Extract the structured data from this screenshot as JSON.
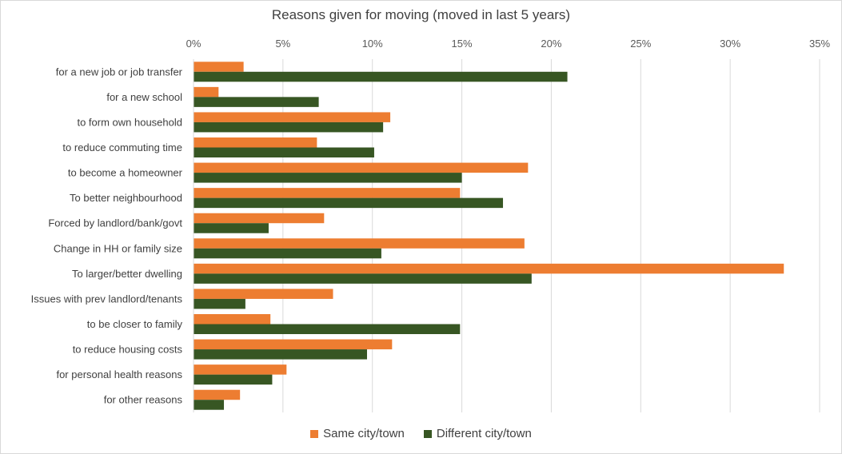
{
  "chart_data": {
    "type": "bar",
    "orientation": "horizontal",
    "title": "Reasons given for moving (moved in last 5 years)",
    "categories": [
      "for a new job or job transfer",
      "for a new school",
      "to form own household",
      "to reduce commuting time",
      "to become a homeowner",
      "To better neighbourhood",
      "Forced by landlord/bank/govt",
      "Change in HH or family size",
      "To larger/better dwelling",
      "Issues with prev landlord/tenants",
      "to be closer to family",
      "to reduce housing costs",
      "for personal health reasons",
      "for other reasons"
    ],
    "series": [
      {
        "name": "Same city/town",
        "color": "#ED7D31",
        "values": [
          2.8,
          1.4,
          11.0,
          6.9,
          18.7,
          14.9,
          7.3,
          18.5,
          33.0,
          7.8,
          4.3,
          11.1,
          5.2,
          2.6
        ]
      },
      {
        "name": "Different city/town",
        "color": "#375623",
        "values": [
          20.9,
          7.0,
          10.6,
          10.1,
          15.0,
          17.3,
          4.2,
          10.5,
          18.9,
          2.9,
          14.9,
          9.7,
          4.4,
          1.7
        ]
      }
    ],
    "xlim": [
      0,
      35
    ],
    "xticks": [
      "0%",
      "5%",
      "10%",
      "15%",
      "20%",
      "25%",
      "30%",
      "35%"
    ],
    "xaxis_position": "top",
    "grid": true,
    "legend_position": "bottom"
  }
}
